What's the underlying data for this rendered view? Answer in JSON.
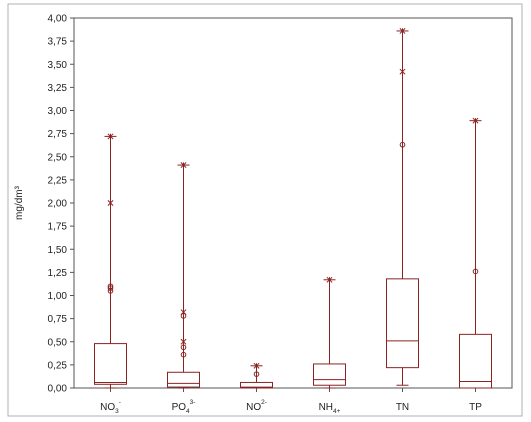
{
  "colors": {
    "box": "#8b2323",
    "axis": "#555555",
    "frame": "#b0b0b0",
    "text": "#222222"
  },
  "chart_data": {
    "type": "box",
    "title": "",
    "xlabel": "",
    "ylabel": "mg/dm³",
    "ylim": [
      0,
      4.0
    ],
    "yticks": [
      0,
      0.25,
      0.5,
      0.75,
      1.0,
      1.25,
      1.5,
      1.75,
      2.0,
      2.25,
      2.5,
      2.75,
      3.0,
      3.25,
      3.5,
      3.75,
      4.0
    ],
    "ytick_labels": [
      "0,00",
      "0,25",
      "0,50",
      "0,75",
      "1,00",
      "1,25",
      "1,50",
      "1,75",
      "2,00",
      "2,25",
      "2,50",
      "2,75",
      "3,00",
      "3,25",
      "3,50",
      "3,75",
      "4,00"
    ],
    "grid": false,
    "categories": [
      {
        "base": "NO",
        "sub": "3",
        "sup": "-",
        "whisker_low": 0.0,
        "q1": 0.04,
        "median": 0.06,
        "q3": 0.48,
        "whisker_high": 2.72,
        "outliers": [
          1.05,
          1.08,
          1.1
        ],
        "extremes": [
          2.0
        ]
      },
      {
        "base": "PO",
        "sub": "4",
        "sup": "3-",
        "whisker_low": 0.0,
        "q1": 0.01,
        "median": 0.05,
        "q3": 0.17,
        "whisker_high": 2.41,
        "outliers": [
          0.36,
          0.44,
          0.78
        ],
        "extremes": [
          0.5,
          0.82
        ]
      },
      {
        "base": "NO",
        "sub": "",
        "sup": "2-",
        "whisker_low": 0.0,
        "q1": 0.0,
        "median": 0.01,
        "q3": 0.06,
        "whisker_high": 0.24,
        "outliers": [
          0.15
        ],
        "extremes": []
      },
      {
        "base": "NH",
        "sub": "4+",
        "sup": "",
        "whisker_low": 0.0,
        "q1": 0.03,
        "median": 0.09,
        "q3": 0.26,
        "whisker_high": 1.17,
        "outliers": [],
        "extremes": []
      },
      {
        "base": "TN",
        "sub": "",
        "sup": "",
        "whisker_low": 0.03,
        "q1": 0.22,
        "median": 0.51,
        "q3": 1.18,
        "whisker_high": 3.86,
        "outliers": [
          2.63
        ],
        "extremes": [
          3.42
        ]
      },
      {
        "base": "TP",
        "sub": "",
        "sup": "",
        "whisker_low": 0.0,
        "q1": 0.0,
        "median": 0.07,
        "q3": 0.58,
        "whisker_high": 2.89,
        "outliers": [
          1.26
        ],
        "extremes": []
      }
    ]
  }
}
